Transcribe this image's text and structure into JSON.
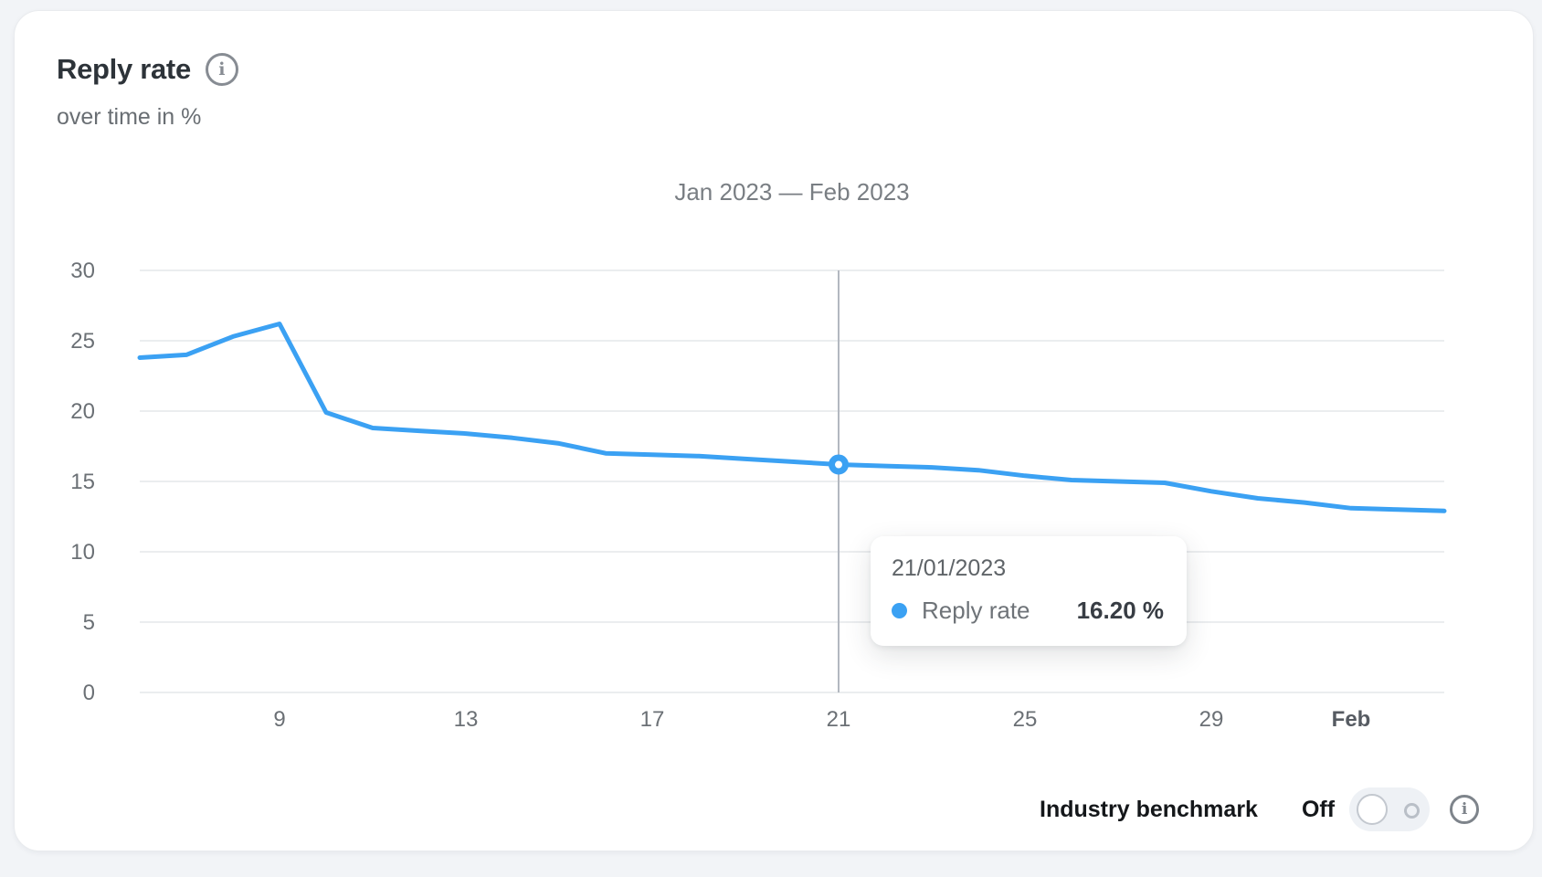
{
  "card": {
    "title": "Reply rate",
    "subtitle": "over time in %",
    "period_title": "Jan 2023 — Feb 2023",
    "info_icon": "i"
  },
  "tooltip": {
    "date": "21/01/2023",
    "series_label": "Reply rate",
    "value": "16.20 %"
  },
  "benchmark": {
    "label": "Industry benchmark",
    "state_label": "Off",
    "toggle_state": "off",
    "info_icon": "i"
  },
  "colors": {
    "line": "#3ba1f3",
    "grid": "#ebedef",
    "crosshair": "#b3b8c0",
    "axis_text": "#6b7075",
    "axis_text_bold": "#565b62",
    "title_text": "#2d3339",
    "subtitle_text": "#696e73",
    "period_text": "#797e83"
  },
  "chart_data": {
    "type": "line",
    "title": "Jan 2023 — Feb 2023",
    "xlabel": "",
    "ylabel": "",
    "ylim": [
      0,
      30
    ],
    "grid": true,
    "legend": false,
    "y_ticks": [
      30,
      25,
      20,
      15,
      10,
      5,
      0
    ],
    "x_ticks": [
      {
        "pos": 9,
        "label": "9"
      },
      {
        "pos": 13,
        "label": "13"
      },
      {
        "pos": 17,
        "label": "17"
      },
      {
        "pos": 21,
        "label": "21"
      },
      {
        "pos": 25,
        "label": "25"
      },
      {
        "pos": 29,
        "label": "29"
      },
      {
        "pos": 32,
        "label": "Feb",
        "bold": true
      }
    ],
    "series": [
      {
        "name": "Reply rate",
        "x": [
          6,
          7,
          8,
          9,
          10,
          11,
          12,
          13,
          14,
          15,
          16,
          17,
          18,
          19,
          20,
          21,
          22,
          23,
          24,
          25,
          26,
          27,
          28,
          29,
          30,
          31,
          32,
          33,
          34
        ],
        "values": [
          23.8,
          24.0,
          25.3,
          26.2,
          19.9,
          18.8,
          18.6,
          18.4,
          18.1,
          17.7,
          17.0,
          16.9,
          16.8,
          16.6,
          16.4,
          16.2,
          16.1,
          16.0,
          15.8,
          15.4,
          15.1,
          15.0,
          14.9,
          14.3,
          13.8,
          13.5,
          13.1,
          13.0,
          12.9
        ]
      }
    ],
    "highlight": {
      "x": 21,
      "value": 16.2,
      "date": "21/01/2023",
      "value_label": "16.20 %"
    }
  }
}
